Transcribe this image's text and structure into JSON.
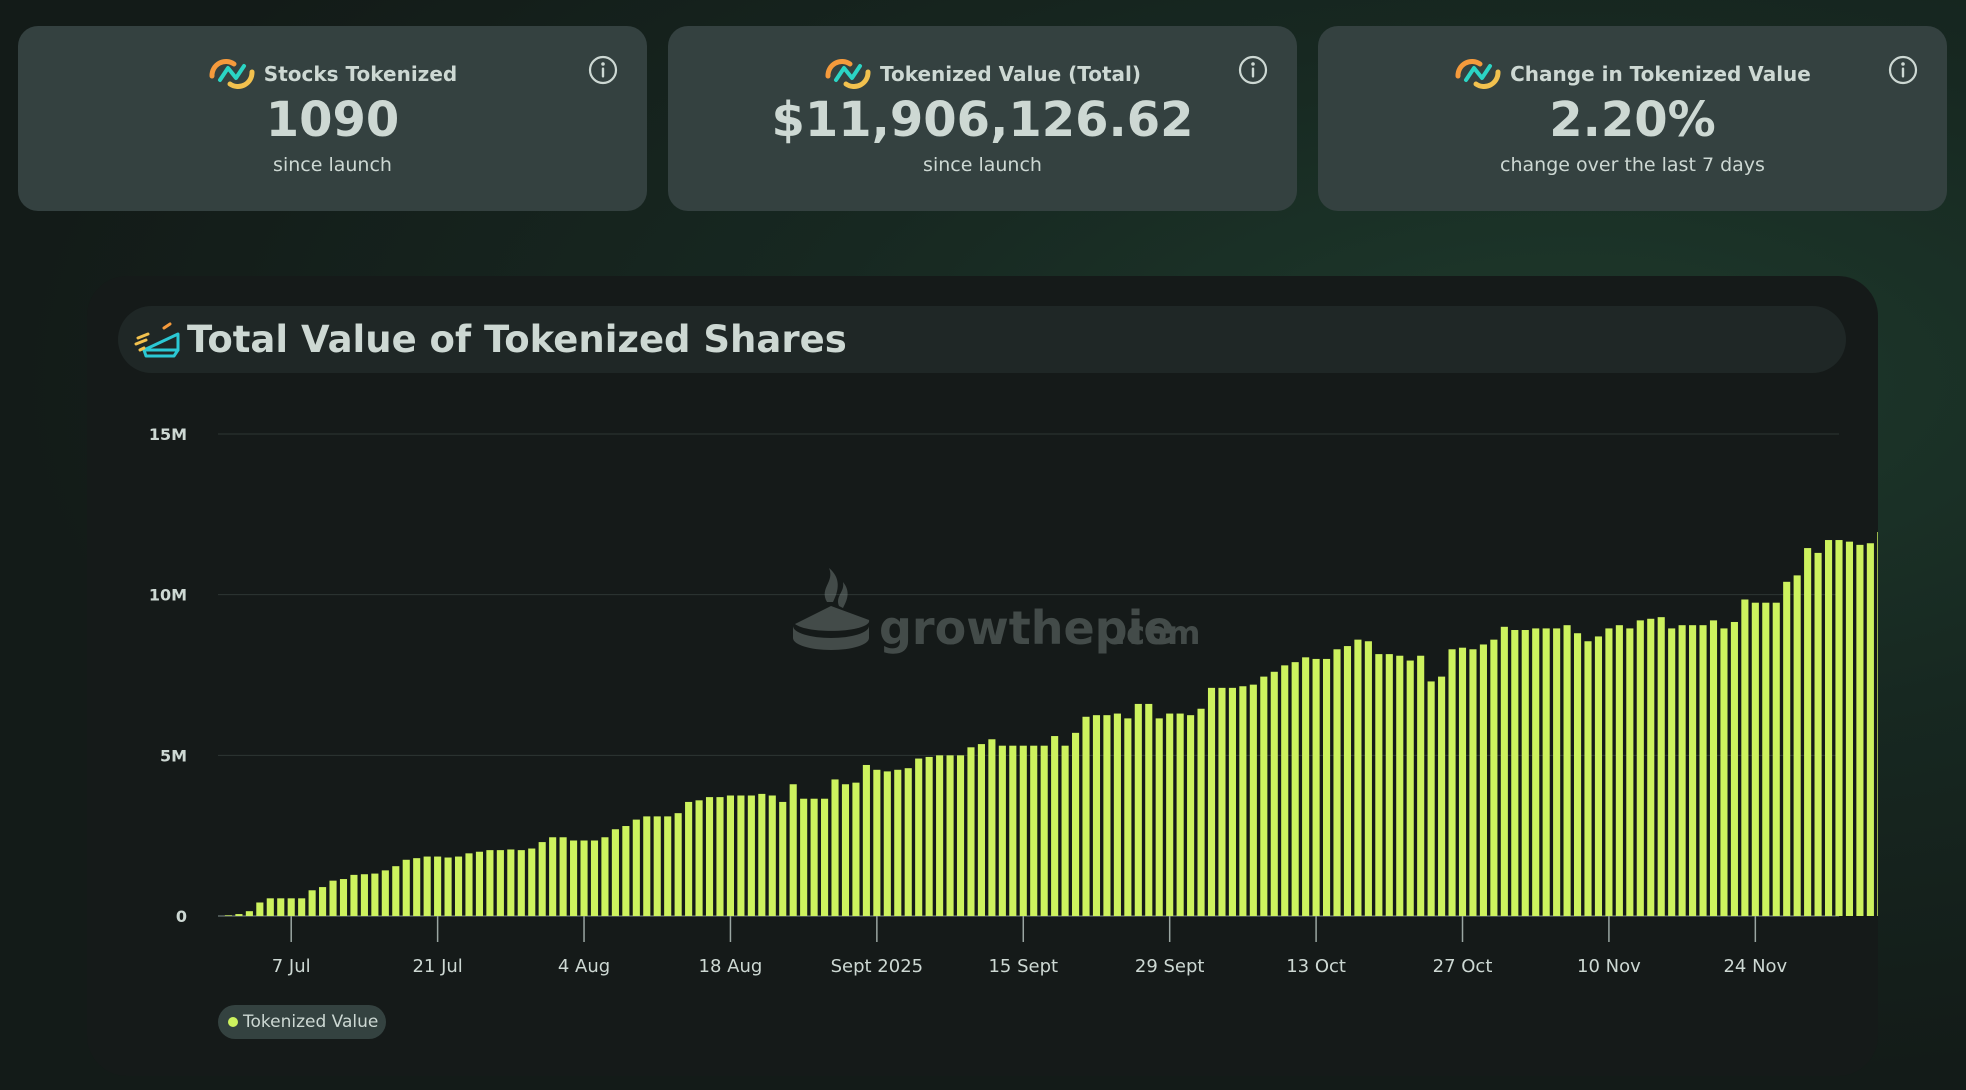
{
  "cards": [
    {
      "title": "Stocks Tokenized",
      "value": "1090",
      "subtitle": "since launch",
      "icon": "growthepie-logo-icon",
      "info_icon": "info-icon"
    },
    {
      "title": "Tokenized Value (Total)",
      "value": "$11,906,126.62",
      "subtitle": "since launch",
      "icon": "growthepie-logo-icon",
      "info_icon": "info-icon"
    },
    {
      "title": "Change in Tokenized Value",
      "value": "2.20%",
      "subtitle": "change over the last 7 days",
      "icon": "growthepie-logo-icon",
      "info_icon": "info-icon"
    }
  ],
  "panel": {
    "title": "Total Value of Tokenized Shares",
    "title_icon": "pie-slice-icon",
    "watermark": {
      "brand": "growthepie",
      "suffix": ".com"
    }
  },
  "colors": {
    "bar": "#cdf25e",
    "card_bg": "#344140",
    "panel_bg": "#151a19",
    "text": "#cdd8d3"
  },
  "chart_data": {
    "type": "bar",
    "x_start": "2025-06-30",
    "x_end": "2025-12-02",
    "x_ticks": [
      {
        "date": "2025-07-07",
        "label": "7 Jul"
      },
      {
        "date": "2025-07-21",
        "label": "21 Jul"
      },
      {
        "date": "2025-08-04",
        "label": "4 Aug"
      },
      {
        "date": "2025-08-18",
        "label": "18 Aug"
      },
      {
        "date": "2025-09-01",
        "label": "Sept 2025"
      },
      {
        "date": "2025-09-15",
        "label": "15 Sept"
      },
      {
        "date": "2025-09-29",
        "label": "29 Sept"
      },
      {
        "date": "2025-10-13",
        "label": "13 Oct"
      },
      {
        "date": "2025-10-27",
        "label": "27 Oct"
      },
      {
        "date": "2025-11-10",
        "label": "10 Nov"
      },
      {
        "date": "2025-11-24",
        "label": "24 Nov"
      }
    ],
    "y_ticks": [
      {
        "value": 0,
        "label": "0"
      },
      {
        "value": 5000000,
        "label": "5M"
      },
      {
        "value": 10000000,
        "label": "10M"
      },
      {
        "value": 15000000,
        "label": "15M"
      }
    ],
    "ylim": [
      0,
      15000000
    ],
    "grid": true,
    "legend": "bottom-left",
    "series": [
      {
        "name": "Tokenized Value",
        "color": "#cdf25e",
        "start_date": "2025-07-01",
        "values": [
          0.02,
          0.06,
          0.15,
          0.42,
          0.55,
          0.55,
          0.55,
          0.55,
          0.8,
          0.9,
          1.1,
          1.15,
          1.28,
          1.3,
          1.32,
          1.42,
          1.55,
          1.75,
          1.8,
          1.85,
          1.85,
          1.82,
          1.85,
          1.95,
          2.0,
          2.05,
          2.05,
          2.07,
          2.05,
          2.1,
          2.3,
          2.45,
          2.45,
          2.35,
          2.35,
          2.35,
          2.45,
          2.7,
          2.8,
          3.0,
          3.1,
          3.1,
          3.1,
          3.2,
          3.55,
          3.6,
          3.7,
          3.7,
          3.75,
          3.75,
          3.75,
          3.8,
          3.75,
          3.55,
          4.1,
          3.65,
          3.65,
          3.65,
          4.25,
          4.1,
          4.15,
          4.7,
          4.55,
          4.5,
          4.55,
          4.6,
          4.9,
          4.95,
          5.0,
          5.0,
          5.0,
          5.25,
          5.35,
          5.5,
          5.3,
          5.3,
          5.3,
          5.3,
          5.3,
          5.6,
          5.3,
          5.7,
          6.2,
          6.25,
          6.25,
          6.3,
          6.15,
          6.6,
          6.6,
          6.15,
          6.3,
          6.3,
          6.25,
          6.45,
          7.1,
          7.1,
          7.1,
          7.15,
          7.2,
          7.45,
          7.6,
          7.8,
          7.9,
          8.05,
          8.0,
          8.0,
          8.3,
          8.4,
          8.6,
          8.55,
          8.15,
          8.15,
          8.1,
          7.95,
          8.1,
          7.3,
          7.45,
          8.3,
          8.35,
          8.3,
          8.45,
          8.6,
          9.0,
          8.9,
          8.9,
          8.95,
          8.95,
          8.95,
          9.05,
          8.8,
          8.55,
          8.7,
          8.95,
          9.05,
          8.95,
          9.2,
          9.25,
          9.3,
          8.95,
          9.05,
          9.05,
          9.05,
          9.2,
          8.95,
          9.15,
          9.85,
          9.75,
          9.75,
          9.75,
          10.4,
          10.6,
          11.45,
          11.3,
          11.7,
          11.7,
          11.65,
          11.55,
          11.6,
          11.95,
          11.9
        ]
      }
    ]
  }
}
